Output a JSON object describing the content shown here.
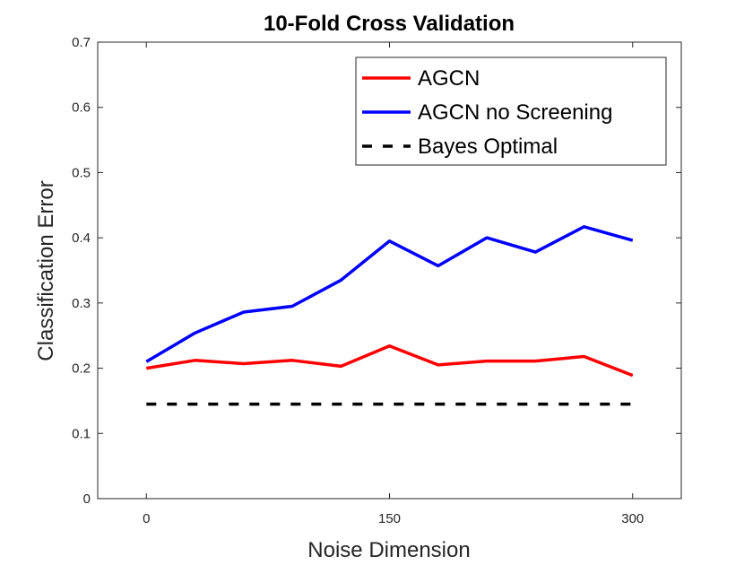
{
  "chart_data": {
    "type": "line",
    "title": "10-Fold Cross Validation",
    "xlabel": "Noise Dimension",
    "ylabel": "Classification Error",
    "xlim": [
      -30,
      330
    ],
    "ylim": [
      0,
      0.7
    ],
    "xticks": [
      0,
      150,
      300
    ],
    "xtick_labels": [
      "0",
      "150",
      "300"
    ],
    "yticks": [
      0,
      0.1,
      0.2,
      0.3,
      0.4,
      0.5,
      0.6,
      0.7
    ],
    "ytick_labels": [
      "0",
      "0.1",
      "0.2",
      "0.3",
      "0.4",
      "0.5",
      "0.6",
      "0.7"
    ],
    "grid": false,
    "legend_position": "top-right",
    "x": [
      0,
      30,
      60,
      90,
      120,
      150,
      180,
      210,
      240,
      270,
      300
    ],
    "series": [
      {
        "name": "AGCN",
        "color": "#ff0000",
        "style": "solid",
        "values": [
          0.2,
          0.212,
          0.207,
          0.212,
          0.203,
          0.234,
          0.205,
          0.211,
          0.211,
          0.218,
          0.189
        ]
      },
      {
        "name": "AGCN no Screening",
        "color": "#0000ff",
        "style": "solid",
        "values": [
          0.21,
          0.254,
          0.286,
          0.295,
          0.335,
          0.395,
          0.357,
          0.4,
          0.378,
          0.417,
          0.396
        ]
      },
      {
        "name": "Bayes Optimal",
        "color": "#000000",
        "style": "dashed",
        "values": [
          0.145,
          0.145,
          0.145,
          0.145,
          0.145,
          0.145,
          0.145,
          0.145,
          0.145,
          0.145,
          0.145
        ]
      }
    ]
  }
}
